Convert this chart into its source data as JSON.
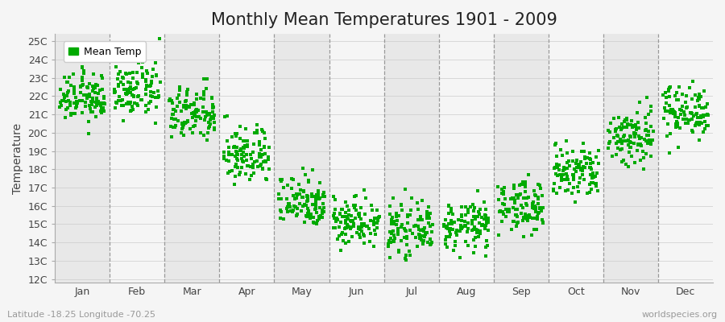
{
  "title": "Monthly Mean Temperatures 1901 - 2009",
  "ylabel": "Temperature",
  "xlabel_bottom_left": "Latitude -18.25 Longitude -70.25",
  "xlabel_bottom_right": "worldspecies.org",
  "ylim": [
    11.8,
    25.4
  ],
  "ytick_labels": [
    "12C",
    "13C",
    "14C",
    "15C",
    "16C",
    "17C",
    "18C",
    "19C",
    "20C",
    "21C",
    "22C",
    "23C",
    "24C",
    "25C"
  ],
  "ytick_values": [
    12,
    13,
    14,
    15,
    16,
    17,
    18,
    19,
    20,
    21,
    22,
    23,
    24,
    25
  ],
  "months": [
    "Jan",
    "Feb",
    "Mar",
    "Apr",
    "May",
    "Jun",
    "Jul",
    "Aug",
    "Sep",
    "Oct",
    "Nov",
    "Dec"
  ],
  "dot_color": "#00aa00",
  "legend_label": "Mean Temp",
  "bg_color": "#f5f5f5",
  "band_colors": [
    "#e8e8e8",
    "#f5f5f5"
  ],
  "title_fontsize": 15,
  "axis_fontsize": 10,
  "tick_fontsize": 9,
  "marker_size": 6,
  "num_years": 109,
  "mean_temps_by_month": [
    21.9,
    22.3,
    21.0,
    18.8,
    16.3,
    15.2,
    14.7,
    14.9,
    16.0,
    17.8,
    19.8,
    21.2
  ],
  "std_temps_by_month": [
    0.65,
    0.72,
    0.75,
    0.8,
    0.72,
    0.68,
    0.65,
    0.65,
    0.7,
    0.78,
    0.85,
    0.72
  ]
}
